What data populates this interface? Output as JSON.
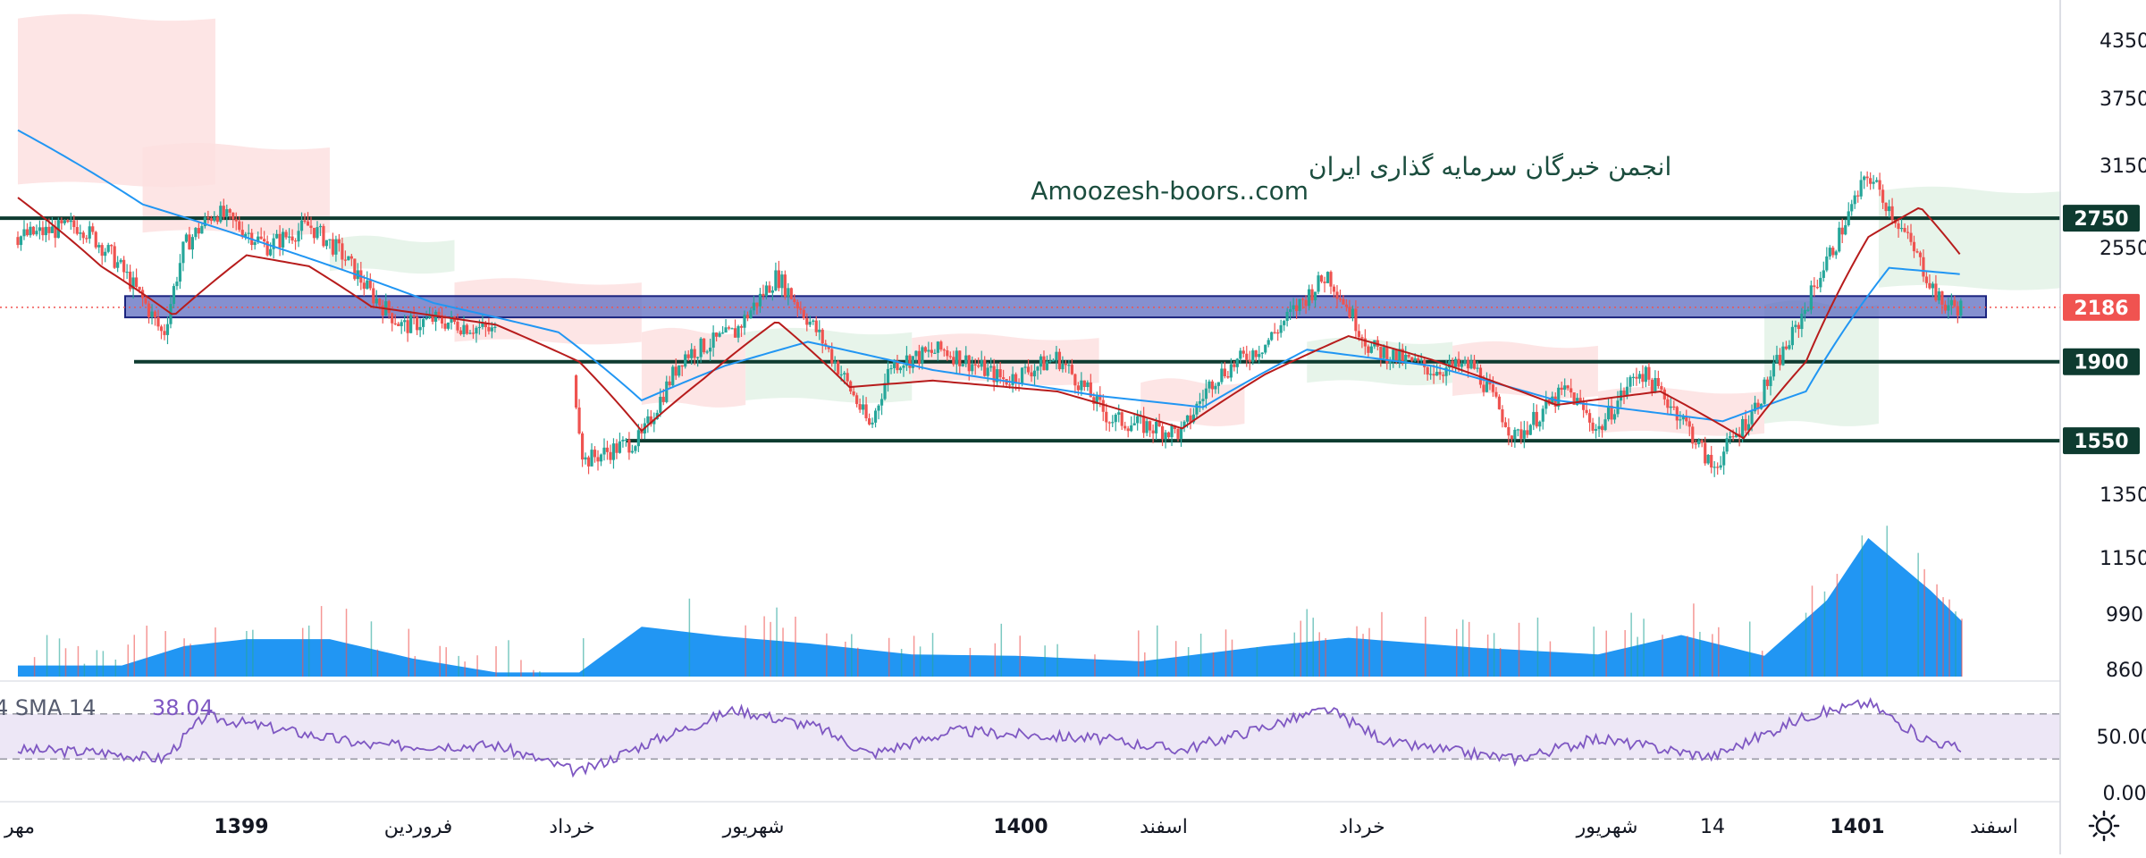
{
  "watermark": {
    "line1": "انجمن خبرگان سرمایه گذاری ایران",
    "line2": "Amoozesh-boors..com"
  },
  "price_axis": {
    "ticks": [
      "4350",
      "3750",
      "3150",
      "2550",
      "1350",
      "1150",
      "990",
      "860"
    ],
    "badges": [
      {
        "label": "2750",
        "value": 2750,
        "style": "dark"
      },
      {
        "label": "2186",
        "value": 2186,
        "style": "red"
      },
      {
        "label": "1900",
        "value": 1900,
        "style": "dark"
      },
      {
        "label": "1550",
        "value": 1550,
        "style": "dark"
      }
    ]
  },
  "rsi_axis": {
    "ticks": [
      "50.00",
      "0.00"
    ]
  },
  "time_axis": {
    "labels": [
      {
        "text": "مهر",
        "bold": false
      },
      {
        "text": "1399",
        "bold": true
      },
      {
        "text": "فروردین",
        "bold": false
      },
      {
        "text": "خرداد",
        "bold": false
      },
      {
        "text": "شهریور",
        "bold": false
      },
      {
        "text": "1400",
        "bold": true
      },
      {
        "text": "اسفند",
        "bold": false
      },
      {
        "text": "خرداد",
        "bold": false
      },
      {
        "text": "شهریور",
        "bold": false
      },
      {
        "text": "14",
        "bold": false
      },
      {
        "text": "1401",
        "bold": true
      },
      {
        "text": "اسفند",
        "bold": false
      }
    ]
  },
  "rsi_legend": {
    "label": "4 SMA 14",
    "value": "38.04"
  },
  "colors": {
    "up": "#26a69a",
    "down": "#ef5350",
    "ma_fast": "#b71c1c",
    "ma_slow": "#2196f3",
    "level_line": "#0e3b30",
    "zone_fill": "#5c6bc0",
    "volume": "#2196f3",
    "rsi_line": "#7e57c2",
    "rsi_band": "#ede7f6",
    "price_badge": "#f05350",
    "cloud_red": "#fde0e0",
    "cloud_green": "#e3f2e6"
  },
  "icons": {
    "settings": "sun-gear-icon"
  },
  "chart_data": {
    "type": "candlestick",
    "y_scale": "log",
    "ylim": [
      800,
      4600
    ],
    "horizontal_levels": [
      2750,
      1900,
      1550
    ],
    "support_zone": [
      2130,
      2250
    ],
    "last_price": 2186,
    "price_path": [
      {
        "t": 0,
        "p": 2620
      },
      {
        "t": 30,
        "p": 2700
      },
      {
        "t": 45,
        "p": 2500
      },
      {
        "t": 60,
        "p": 2230
      },
      {
        "t": 70,
        "p": 2030
      },
      {
        "t": 80,
        "p": 2560
      },
      {
        "t": 95,
        "p": 2800
      },
      {
        "t": 120,
        "p": 2560
      },
      {
        "t": 140,
        "p": 2700
      },
      {
        "t": 155,
        "p": 2520
      },
      {
        "t": 170,
        "p": 2260
      },
      {
        "t": 185,
        "p": 2080
      },
      {
        "t": 200,
        "p": 2120
      },
      {
        "t": 230,
        "p": 2050
      },
      {
        "t": 265,
        "p": 1980
      },
      {
        "t": 272,
        "p": 1470
      },
      {
        "t": 300,
        "p": 1560
      },
      {
        "t": 320,
        "p": 1930
      },
      {
        "t": 345,
        "p": 2050
      },
      {
        "t": 365,
        "p": 2370
      },
      {
        "t": 385,
        "p": 2040
      },
      {
        "t": 410,
        "p": 1600
      },
      {
        "t": 420,
        "p": 1890
      },
      {
        "t": 445,
        "p": 1960
      },
      {
        "t": 475,
        "p": 1810
      },
      {
        "t": 500,
        "p": 1920
      },
      {
        "t": 525,
        "p": 1640
      },
      {
        "t": 560,
        "p": 1580
      },
      {
        "t": 575,
        "p": 1820
      },
      {
        "t": 600,
        "p": 1990
      },
      {
        "t": 630,
        "p": 2380
      },
      {
        "t": 650,
        "p": 1970
      },
      {
        "t": 680,
        "p": 1860
      },
      {
        "t": 700,
        "p": 1880
      },
      {
        "t": 720,
        "p": 1560
      },
      {
        "t": 745,
        "p": 1770
      },
      {
        "t": 760,
        "p": 1590
      },
      {
        "t": 780,
        "p": 1860
      },
      {
        "t": 800,
        "p": 1650
      },
      {
        "t": 815,
        "p": 1440
      },
      {
        "t": 835,
        "p": 1680
      },
      {
        "t": 855,
        "p": 2060
      },
      {
        "t": 875,
        "p": 2600
      },
      {
        "t": 890,
        "p": 3080
      },
      {
        "t": 905,
        "p": 2700
      },
      {
        "t": 925,
        "p": 2200
      },
      {
        "t": 935,
        "p": 2186
      }
    ],
    "ma_fast_path": [
      {
        "t": 0,
        "p": 2900
      },
      {
        "t": 40,
        "p": 2430
      },
      {
        "t": 75,
        "p": 2140
      },
      {
        "t": 110,
        "p": 2500
      },
      {
        "t": 140,
        "p": 2430
      },
      {
        "t": 170,
        "p": 2190
      },
      {
        "t": 230,
        "p": 2090
      },
      {
        "t": 270,
        "p": 1900
      },
      {
        "t": 300,
        "p": 1590
      },
      {
        "t": 330,
        "p": 1820
      },
      {
        "t": 365,
        "p": 2110
      },
      {
        "t": 400,
        "p": 1780
      },
      {
        "t": 440,
        "p": 1810
      },
      {
        "t": 500,
        "p": 1760
      },
      {
        "t": 560,
        "p": 1600
      },
      {
        "t": 600,
        "p": 1840
      },
      {
        "t": 640,
        "p": 2030
      },
      {
        "t": 680,
        "p": 1910
      },
      {
        "t": 740,
        "p": 1700
      },
      {
        "t": 790,
        "p": 1760
      },
      {
        "t": 830,
        "p": 1560
      },
      {
        "t": 860,
        "p": 1900
      },
      {
        "t": 890,
        "p": 2620
      },
      {
        "t": 915,
        "p": 2830
      },
      {
        "t": 935,
        "p": 2490
      }
    ],
    "ma_slow_path": [
      {
        "t": 0,
        "p": 3450
      },
      {
        "t": 60,
        "p": 2850
      },
      {
        "t": 120,
        "p": 2570
      },
      {
        "t": 200,
        "p": 2210
      },
      {
        "t": 260,
        "p": 2050
      },
      {
        "t": 300,
        "p": 1720
      },
      {
        "t": 340,
        "p": 1880
      },
      {
        "t": 380,
        "p": 2000
      },
      {
        "t": 440,
        "p": 1860
      },
      {
        "t": 520,
        "p": 1740
      },
      {
        "t": 570,
        "p": 1690
      },
      {
        "t": 620,
        "p": 1960
      },
      {
        "t": 680,
        "p": 1880
      },
      {
        "t": 740,
        "p": 1720
      },
      {
        "t": 820,
        "p": 1630
      },
      {
        "t": 860,
        "p": 1760
      },
      {
        "t": 900,
        "p": 2420
      },
      {
        "t": 935,
        "p": 2380
      }
    ],
    "volume_profile": [
      {
        "t": 0,
        "v": 0.08
      },
      {
        "t": 50,
        "v": 0.08
      },
      {
        "t": 80,
        "v": 0.22
      },
      {
        "t": 110,
        "v": 0.27
      },
      {
        "t": 150,
        "v": 0.27
      },
      {
        "t": 190,
        "v": 0.13
      },
      {
        "t": 230,
        "v": 0.03
      },
      {
        "t": 270,
        "v": 0.03
      },
      {
        "t": 300,
        "v": 0.36
      },
      {
        "t": 340,
        "v": 0.29
      },
      {
        "t": 380,
        "v": 0.24
      },
      {
        "t": 430,
        "v": 0.16
      },
      {
        "t": 480,
        "v": 0.15
      },
      {
        "t": 540,
        "v": 0.11
      },
      {
        "t": 600,
        "v": 0.22
      },
      {
        "t": 640,
        "v": 0.28
      },
      {
        "t": 700,
        "v": 0.21
      },
      {
        "t": 760,
        "v": 0.16
      },
      {
        "t": 800,
        "v": 0.3
      },
      {
        "t": 840,
        "v": 0.15
      },
      {
        "t": 870,
        "v": 0.55
      },
      {
        "t": 890,
        "v": 1.0
      },
      {
        "t": 920,
        "v": 0.62
      },
      {
        "t": 935,
        "v": 0.4
      }
    ],
    "rsi_path": [
      {
        "t": 0,
        "r": 38
      },
      {
        "t": 40,
        "r": 36
      },
      {
        "t": 70,
        "r": 30
      },
      {
        "t": 90,
        "r": 68
      },
      {
        "t": 130,
        "r": 55
      },
      {
        "t": 170,
        "r": 42
      },
      {
        "t": 230,
        "r": 42
      },
      {
        "t": 270,
        "r": 18
      },
      {
        "t": 300,
        "r": 42
      },
      {
        "t": 345,
        "r": 74
      },
      {
        "t": 385,
        "r": 58
      },
      {
        "t": 410,
        "r": 34
      },
      {
        "t": 450,
        "r": 55
      },
      {
        "t": 520,
        "r": 48
      },
      {
        "t": 560,
        "r": 38
      },
      {
        "t": 630,
        "r": 74
      },
      {
        "t": 660,
        "r": 44
      },
      {
        "t": 720,
        "r": 30
      },
      {
        "t": 760,
        "r": 48
      },
      {
        "t": 815,
        "r": 32
      },
      {
        "t": 860,
        "r": 68
      },
      {
        "t": 890,
        "r": 80
      },
      {
        "t": 915,
        "r": 50
      },
      {
        "t": 935,
        "r": 38
      }
    ],
    "rsi_bands": [
      70,
      30
    ]
  }
}
